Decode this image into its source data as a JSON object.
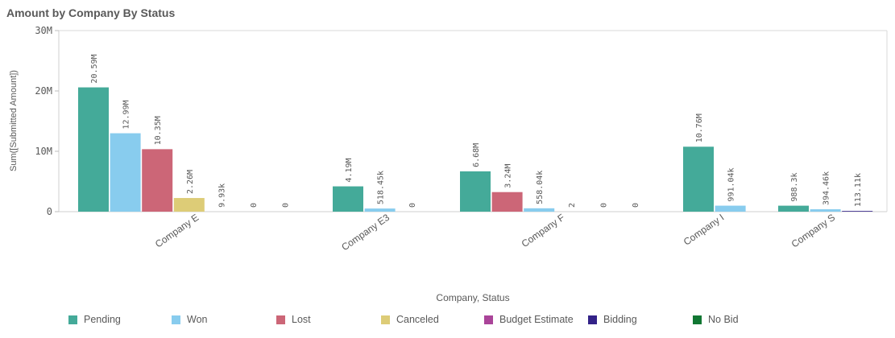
{
  "title": "Amount by Company By Status",
  "chart_data": {
    "type": "bar",
    "title": "Amount by Company By Status",
    "xlabel": "Company, Status",
    "ylabel": "Sum([Submitted Amount])",
    "ylim": [
      0,
      30000000
    ],
    "yticks": [
      0,
      10000000,
      20000000,
      30000000
    ],
    "ytick_labels": [
      "0",
      "10M",
      "20M",
      "30M"
    ],
    "grid": false,
    "legend_position": "bottom",
    "series": [
      {
        "name": "Pending",
        "color": "#44aa99"
      },
      {
        "name": "Won",
        "color": "#88ccee"
      },
      {
        "name": "Lost",
        "color": "#cc6677"
      },
      {
        "name": "Canceled",
        "color": "#ddcc77"
      },
      {
        "name": "Budget Estimate",
        "color": "#aa4499"
      },
      {
        "name": "Bidding",
        "color": "#332288"
      },
      {
        "name": "No Bid",
        "color": "#117733"
      }
    ],
    "groups": [
      {
        "category": "Company E",
        "bars": [
          {
            "series": "Pending",
            "value": 20590000,
            "label": "20.59M"
          },
          {
            "series": "Won",
            "value": 12990000,
            "label": "12.99M"
          },
          {
            "series": "Lost",
            "value": 10350000,
            "label": "10.35M"
          },
          {
            "series": "Canceled",
            "value": 2260000,
            "label": "2.26M"
          },
          {
            "series": "Budget Estimate",
            "value": 9930,
            "label": "9.93k"
          },
          {
            "series": "Bidding",
            "value": 0,
            "label": "0"
          },
          {
            "series": "No Bid",
            "value": 0,
            "label": "0"
          }
        ]
      },
      {
        "category": "Company E3",
        "bars": [
          {
            "series": "Pending",
            "value": 4190000,
            "label": "4.19M"
          },
          {
            "series": "Won",
            "value": 518450,
            "label": "518.45k"
          },
          {
            "series": "Lost",
            "value": 0,
            "label": "0"
          }
        ]
      },
      {
        "category": "Company F",
        "bars": [
          {
            "series": "Pending",
            "value": 6680000,
            "label": "6.68M"
          },
          {
            "series": "Lost",
            "value": 3240000,
            "label": "3.24M"
          },
          {
            "series": "Won",
            "value": 558040,
            "label": "558.04k"
          },
          {
            "series": "Canceled",
            "value": 2,
            "label": "2"
          },
          {
            "series": "Budget Estimate",
            "value": 0,
            "label": "0"
          },
          {
            "series": "Bidding",
            "value": 0,
            "label": "0"
          }
        ]
      },
      {
        "category": "Company I",
        "bars": [
          {
            "series": "Pending",
            "value": 10760000,
            "label": "10.76M"
          },
          {
            "series": "Won",
            "value": 991040,
            "label": "991.04k"
          }
        ]
      },
      {
        "category": "Company S",
        "bars": [
          {
            "series": "Pending",
            "value": 988300,
            "label": "988.3k"
          },
          {
            "series": "Won",
            "value": 394460,
            "label": "394.46k"
          },
          {
            "series": "Bidding",
            "value": 113110,
            "label": "113.11k"
          }
        ]
      }
    ]
  }
}
